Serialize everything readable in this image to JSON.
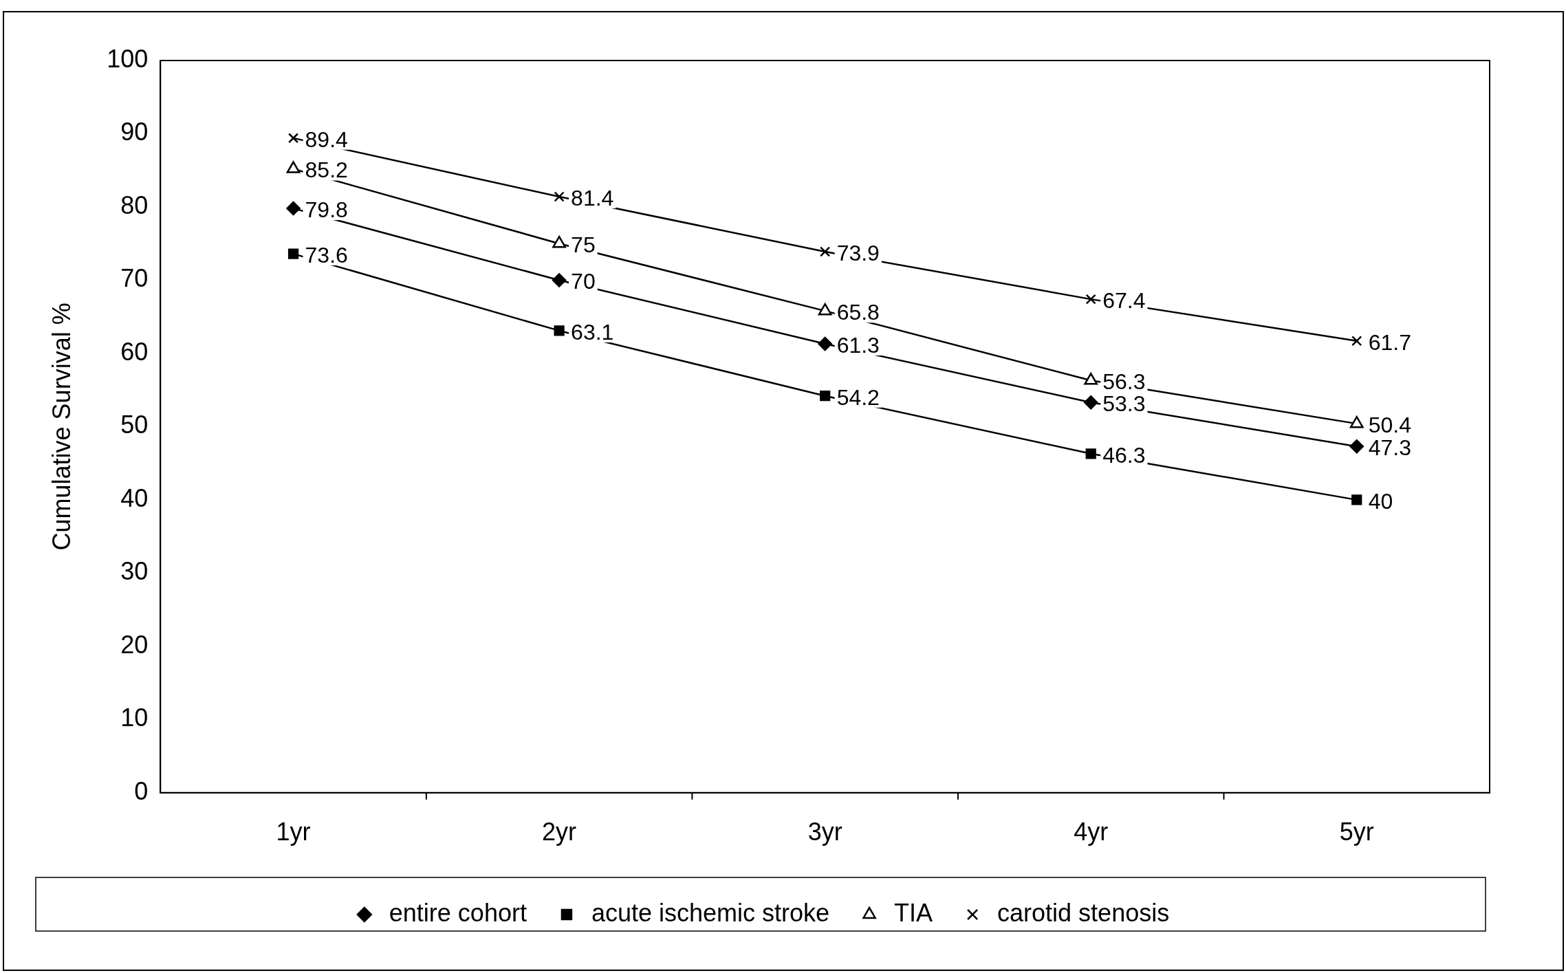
{
  "chart_data": {
    "type": "line",
    "ylabel": "Cumulative Survival %",
    "categories": [
      "1yr",
      "2yr",
      "3yr",
      "4yr",
      "5yr"
    ],
    "series": [
      {
        "name": "entire cohort",
        "color": "#000000",
        "marker": "diamond",
        "values": [
          79.8,
          70,
          61.3,
          53.3,
          47.3
        ]
      },
      {
        "name": "acute ischemic stroke",
        "color": "#000000",
        "marker": "square",
        "values": [
          73.6,
          63.1,
          54.2,
          46.3,
          40
        ]
      },
      {
        "name": "TIA",
        "color": "#000000",
        "marker": "triangle",
        "values": [
          85.2,
          75,
          65.8,
          56.3,
          50.4
        ]
      },
      {
        "name": "carotid stenosis",
        "color": "#000000",
        "marker": "cross",
        "values": [
          89.4,
          81.4,
          73.9,
          67.4,
          61.7
        ]
      }
    ],
    "ylim": [
      0,
      100
    ],
    "yticks": [
      0,
      10,
      20,
      30,
      40,
      50,
      60,
      70,
      80,
      90,
      100
    ],
    "grid": false,
    "legend": "bottom",
    "data_labels": true,
    "line_style": "solid"
  }
}
